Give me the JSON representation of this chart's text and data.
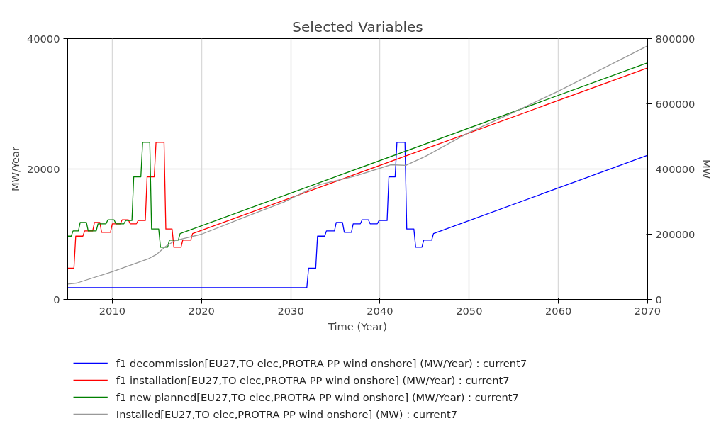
{
  "chart_data": {
    "type": "line",
    "title": "Selected Variables",
    "xlabel": "Time (Year)",
    "ylabel": "MW/Year",
    "y2label": "MW",
    "xlim": [
      2005,
      2070
    ],
    "xticks": [
      2010,
      2020,
      2030,
      2040,
      2050,
      2060,
      2070
    ],
    "ylim": [
      0,
      40000
    ],
    "yticks": [
      0,
      20000,
      40000
    ],
    "y2lim": [
      0,
      800000
    ],
    "y2ticks": [
      0,
      200000,
      400000,
      600000,
      800000
    ],
    "grid": true,
    "legend": "bottom",
    "line_style": "solid",
    "marker": "none",
    "series": [
      {
        "name": "f1 decommission[EU27,TO elec,PROTRA PP wind onshore] (MW/Year) : current7",
        "color": "#0000ff",
        "x": [
          2005,
          2031.8,
          2032.0,
          2032.8,
          2033.0,
          2033.8,
          2034.0,
          2034.9,
          2035.1,
          2035.8,
          2036.0,
          2036.8,
          2037.0,
          2037.8,
          2038.0,
          2038.7,
          2038.9,
          2039.7,
          2039.9,
          2040.8,
          2041.0,
          2041.7,
          2041.9,
          2042.8,
          2043.0,
          2043.8,
          2044.0,
          2044.7,
          2044.9,
          2045.8,
          2046.0,
          2070
        ],
        "values": [
          1800,
          1800,
          4800,
          4800,
          9700,
          9700,
          10500,
          10500,
          11800,
          11800,
          10300,
          10300,
          11600,
          11600,
          12200,
          12200,
          11600,
          11600,
          12100,
          12100,
          18800,
          18800,
          24100,
          24100,
          10800,
          10800,
          8000,
          8000,
          9100,
          9100,
          10100,
          22100
        ]
      },
      {
        "name": "f1 installation[EU27,TO elec,PROTRA PP wind onshore] (MW/Year) : current7",
        "color": "#ff0000",
        "x": [
          2005,
          2005.7,
          2005.9,
          2006.7,
          2006.9,
          2007.8,
          2008.0,
          2008.6,
          2008.8,
          2009.8,
          2010.0,
          2010.9,
          2011.1,
          2011.8,
          2012.0,
          2012.7,
          2012.9,
          2013.7,
          2013.9,
          2014.7,
          2014.9,
          2015.8,
          2016.0,
          2016.7,
          2016.9,
          2017.7,
          2017.9,
          2018.8,
          2019.0,
          2070
        ],
        "values": [
          4800,
          4800,
          9700,
          9700,
          10500,
          10500,
          11800,
          11800,
          10300,
          10300,
          11600,
          11600,
          12200,
          12200,
          11600,
          11600,
          12100,
          12100,
          18800,
          18800,
          24100,
          24100,
          10800,
          10800,
          8000,
          8000,
          9100,
          9100,
          10100,
          35500
        ]
      },
      {
        "name": "f1 new planned[EU27,TO elec,PROTRA PP wind onshore] (MW/Year) : current7",
        "color": "#008000",
        "x": [
          2005,
          2005.4,
          2005.6,
          2006.2,
          2006.4,
          2007.1,
          2007.3,
          2008.2,
          2008.4,
          2009.3,
          2009.5,
          2010.2,
          2010.4,
          2011.3,
          2011.5,
          2012.2,
          2012.4,
          2013.2,
          2013.4,
          2014.2,
          2014.4,
          2015.2,
          2015.4,
          2016.2,
          2016.4,
          2017.4,
          2017.6,
          2070
        ],
        "values": [
          9700,
          9700,
          10500,
          10500,
          11800,
          11800,
          10500,
          10500,
          11600,
          11600,
          12200,
          12200,
          11600,
          11600,
          12100,
          12100,
          18800,
          18800,
          24100,
          24100,
          10800,
          10800,
          8000,
          8000,
          9100,
          9100,
          10100,
          36300
        ]
      },
      {
        "name": "Installed[EU27,TO elec,PROTRA PP wind onshore] (MW) : current7",
        "color": "#999999",
        "axis": "y2",
        "x": [
          2005,
          2006,
          2010,
          2014,
          2015,
          2016,
          2017,
          2020,
          2025,
          2029.2,
          2033.2,
          2037.2,
          2041.2,
          2042.9,
          2045.1,
          2049.9,
          2055,
          2060,
          2070
        ],
        "values": [
          47000,
          50000,
          85000,
          124000,
          139000,
          163000,
          180000,
          200000,
          254000,
          298000,
          352000,
          378000,
          413000,
          411000,
          439000,
          511000,
          574000,
          639000,
          778000
        ]
      }
    ]
  }
}
